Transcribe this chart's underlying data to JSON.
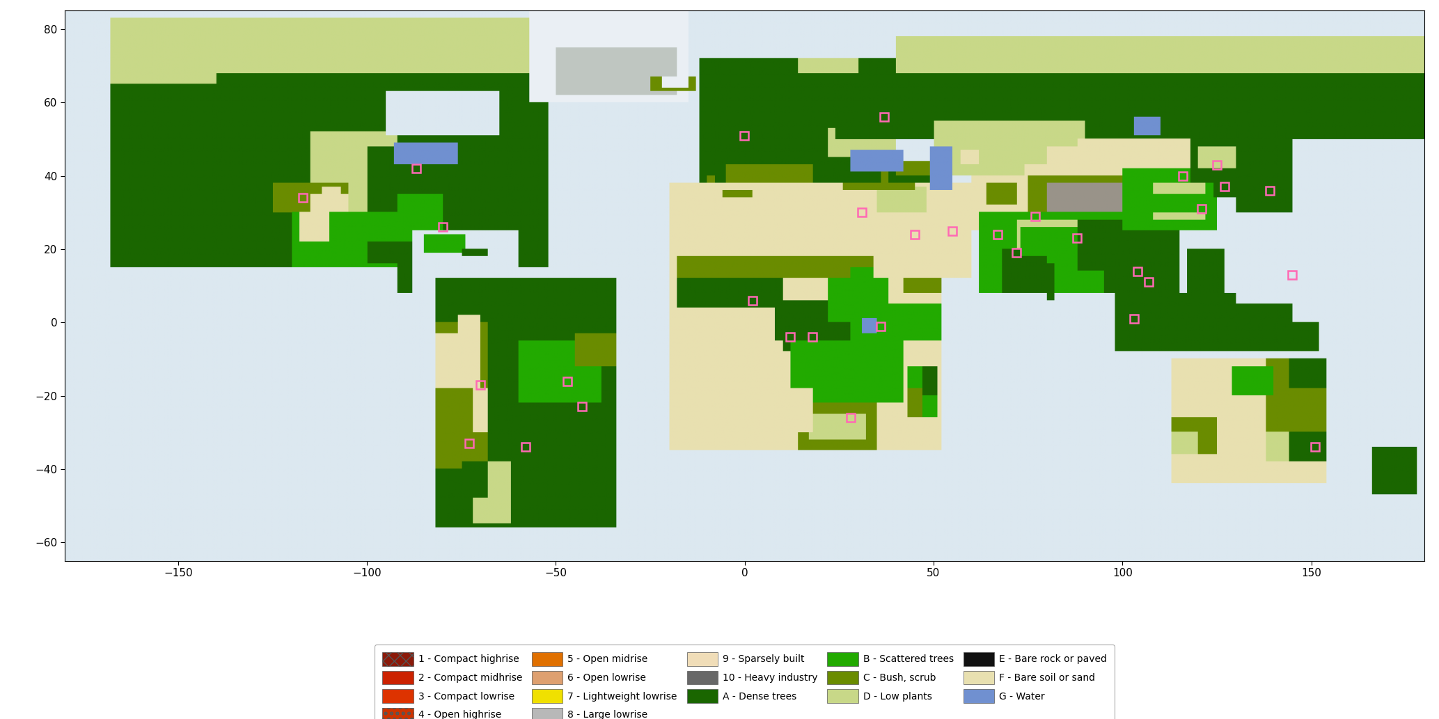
{
  "xlim": [
    -180,
    180
  ],
  "ylim": [
    -65,
    85
  ],
  "xticks": [
    -150,
    -100,
    -50,
    0,
    50,
    100,
    150
  ],
  "yticks": [
    -60,
    -40,
    -20,
    0,
    20,
    40,
    60,
    80
  ],
  "ocean_color": "#dce8f0",
  "figsize": [
    20.67,
    10.33
  ],
  "dpi": 100,
  "legend_items": [
    {
      "code": "1",
      "label": "1 - Compact highrise",
      "facecolor": "#8b1a0a",
      "edgecolor": "#555555",
      "hatch": "xx"
    },
    {
      "code": "2",
      "label": "2 - Compact midhrise",
      "facecolor": "#cc2200",
      "edgecolor": "#555555",
      "hatch": ""
    },
    {
      "code": "3",
      "label": "3 - Compact lowrise",
      "facecolor": "#dd3300",
      "edgecolor": "#555555",
      "hatch": ""
    },
    {
      "code": "4",
      "label": "4 - Open highrise",
      "facecolor": "#cc3300",
      "edgecolor": "#555555",
      "hatch": "oo"
    },
    {
      "code": "5",
      "label": "5 - Open midrise",
      "facecolor": "#e07000",
      "edgecolor": "#555555",
      "hatch": ""
    },
    {
      "code": "6",
      "label": "6 - Open lowrise",
      "facecolor": "#dea070",
      "edgecolor": "#555555",
      "hatch": ""
    },
    {
      "code": "7",
      "label": "7 - Lightweight lowrise",
      "facecolor": "#f0e000",
      "edgecolor": "#555555",
      "hatch": ""
    },
    {
      "code": "8",
      "label": "8 - Large lowrise",
      "facecolor": "#b8b8b8",
      "edgecolor": "#555555",
      "hatch": ""
    },
    {
      "code": "9",
      "label": "9 - Sparsely built",
      "facecolor": "#f0ddb8",
      "edgecolor": "#555555",
      "hatch": ""
    },
    {
      "code": "10",
      "label": "10 - Heavy industry",
      "facecolor": "#686868",
      "edgecolor": "#555555",
      "hatch": ""
    },
    {
      "code": "A",
      "label": "A - Dense trees",
      "facecolor": "#1a6600",
      "edgecolor": "#555555",
      "hatch": ""
    },
    {
      "code": "B",
      "label": "B - Scattered trees",
      "facecolor": "#22aa00",
      "edgecolor": "#555555",
      "hatch": ""
    },
    {
      "code": "C",
      "label": "C - Bush, scrub",
      "facecolor": "#6a8c00",
      "edgecolor": "#555555",
      "hatch": ""
    },
    {
      "code": "D",
      "label": "D - Low plants",
      "facecolor": "#c8d888",
      "edgecolor": "#555555",
      "hatch": ""
    },
    {
      "code": "E",
      "label": "E - Bare rock or paved",
      "facecolor": "#111111",
      "edgecolor": "#555555",
      "hatch": ""
    },
    {
      "code": "F",
      "label": "F - Bare soil or sand",
      "facecolor": "#e8e0b0",
      "edgecolor": "#555555",
      "hatch": ""
    },
    {
      "code": "G",
      "label": "G - Water",
      "facecolor": "#7090d0",
      "edgecolor": "#555555",
      "hatch": ""
    }
  ],
  "city_markers_lon": [
    -117,
    -87,
    -43,
    -58,
    -80,
    2,
    28,
    37,
    55,
    77,
    103,
    116,
    121,
    139,
    151,
    31,
    -0.1,
    -73,
    -47,
    -70,
    12,
    18,
    36,
    45,
    67,
    72,
    88,
    104,
    107,
    125,
    127,
    145
  ],
  "city_markers_lat": [
    34,
    42,
    -23,
    -34,
    26,
    6,
    -26,
    56,
    25,
    29,
    1,
    40,
    31,
    36,
    -34,
    30,
    51,
    -33,
    -16,
    -17,
    -4,
    -4,
    -1,
    24,
    24,
    19,
    23,
    14,
    11,
    43,
    37,
    13
  ]
}
